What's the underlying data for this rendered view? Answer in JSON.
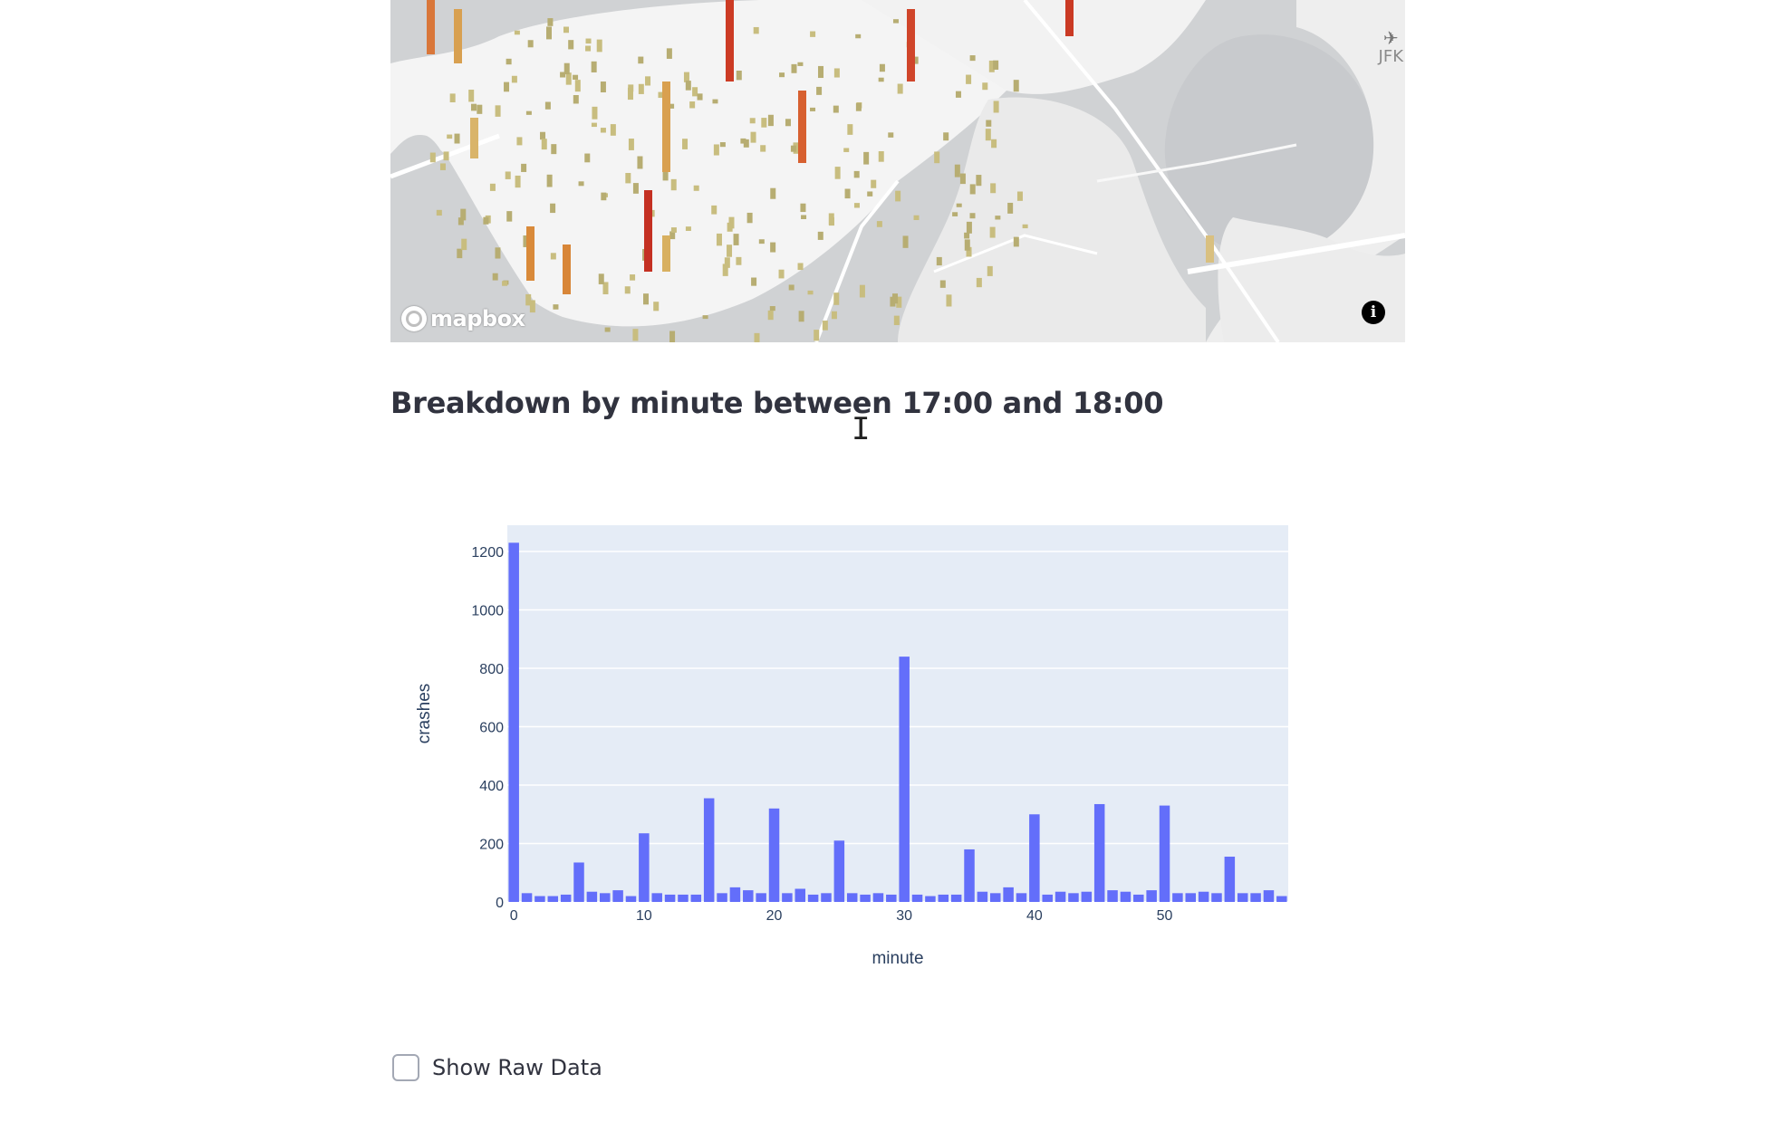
{
  "map": {
    "attribution_logo": "mapbox",
    "airport_label": "JFK",
    "airport_icon": "airplane-icon",
    "info_icon": "info-icon",
    "info_glyph": "i"
  },
  "section": {
    "title": "Breakdown by minute between 17:00 and 18:00"
  },
  "cursor": {
    "icon": "text-cursor-icon",
    "glyph": "I"
  },
  "chart_data": {
    "type": "bar",
    "title": "",
    "xlabel": "minute",
    "ylabel": "crashes",
    "x": [
      0,
      1,
      2,
      3,
      4,
      5,
      6,
      7,
      8,
      9,
      10,
      11,
      12,
      13,
      14,
      15,
      16,
      17,
      18,
      19,
      20,
      21,
      22,
      23,
      24,
      25,
      26,
      27,
      28,
      29,
      30,
      31,
      32,
      33,
      34,
      35,
      36,
      37,
      38,
      39,
      40,
      41,
      42,
      43,
      44,
      45,
      46,
      47,
      48,
      49,
      50,
      51,
      52,
      53,
      54,
      55,
      56,
      57,
      58,
      59
    ],
    "values": [
      1230,
      30,
      20,
      20,
      25,
      135,
      35,
      30,
      40,
      20,
      235,
      30,
      25,
      25,
      25,
      355,
      30,
      50,
      40,
      30,
      320,
      30,
      45,
      25,
      30,
      210,
      30,
      25,
      30,
      25,
      840,
      25,
      20,
      25,
      25,
      180,
      35,
      30,
      50,
      30,
      300,
      25,
      35,
      30,
      35,
      335,
      40,
      35,
      25,
      40,
      330,
      30,
      30,
      35,
      30,
      155,
      30,
      30,
      40,
      20
    ],
    "xlim": [
      -0.5,
      59.5
    ],
    "ylim": [
      0,
      1290
    ],
    "xticks": [
      0,
      10,
      20,
      30,
      40,
      50
    ],
    "yticks": [
      0,
      200,
      400,
      600,
      800,
      1000,
      1200
    ],
    "grid": true,
    "bar_color": "#636efa",
    "plot_bg": "#e5ecf6"
  },
  "raw_data": {
    "checkbox_label": "Show Raw Data",
    "checked": false
  }
}
